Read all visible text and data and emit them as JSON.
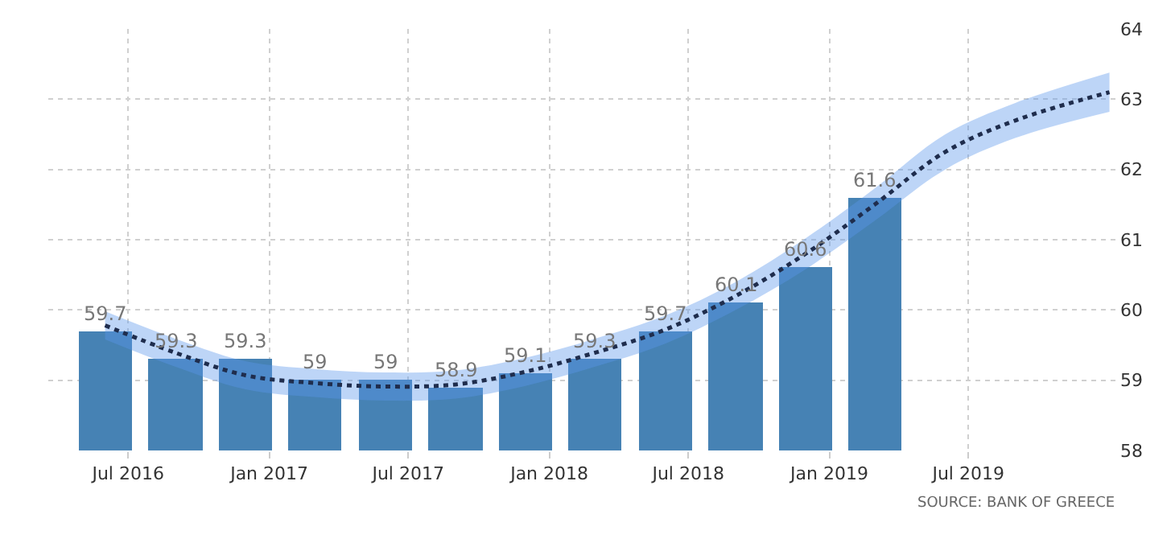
{
  "chart_data": {
    "type": "bar",
    "x": [
      "2016-06",
      "2016-09",
      "2016-12",
      "2017-03",
      "2017-06",
      "2017-09",
      "2017-12",
      "2018-03",
      "2018-06",
      "2018-09",
      "2018-12",
      "2019-03"
    ],
    "series": [
      {
        "color": "#4682b4",
        "values": [
          59.7,
          59.3,
          59.3,
          59,
          59,
          58.9,
          59.1,
          59.3,
          59.7,
          60.1,
          60.6,
          61.6
        ],
        "value_labels": [
          "59.7",
          "59.3",
          "59.3",
          "59",
          "59",
          "58.9",
          "59.1",
          "59.3",
          "59.7",
          "60.1",
          "60.6",
          "61.6"
        ]
      },
      {
        "type": "line",
        "color": "#1f2d4d",
        "line_style": "dotted",
        "x": [
          "2016-06",
          "2016-09",
          "2016-12",
          "2017-03",
          "2017-06",
          "2017-09",
          "2017-12",
          "2018-03",
          "2018-06",
          "2018-09",
          "2018-12",
          "2019-03",
          "2019-06",
          "2019-09",
          "2020-01"
        ],
        "values": [
          59.78,
          59.39,
          59.07,
          58.96,
          58.91,
          58.94,
          59.12,
          59.39,
          59.72,
          60.2,
          60.8,
          61.5,
          62.25,
          62.7,
          63.1
        ],
        "lower": [
          59.58,
          59.19,
          58.87,
          58.76,
          58.71,
          58.74,
          58.92,
          59.19,
          59.52,
          60.0,
          60.58,
          61.27,
          62.0,
          62.45,
          62.82
        ],
        "upper": [
          59.98,
          59.59,
          59.27,
          59.16,
          59.11,
          59.14,
          59.32,
          59.59,
          59.92,
          60.4,
          61.02,
          61.73,
          62.5,
          62.95,
          63.38
        ]
      }
    ],
    "xlim": [
      "2016-03-19",
      "2020-01-13"
    ],
    "xticks": [
      {
        "value": "2016-07",
        "label": "Jul 2016"
      },
      {
        "value": "2017-01",
        "label": "Jan 2017"
      },
      {
        "value": "2017-07",
        "label": "Jul 2017"
      },
      {
        "value": "2018-01",
        "label": "Jan 2018"
      },
      {
        "value": "2018-07",
        "label": "Jul 2018"
      },
      {
        "value": "2019-01",
        "label": "Jan 2019"
      },
      {
        "value": "2019-07",
        "label": "Jul 2019"
      }
    ],
    "ylim": [
      58,
      64
    ],
    "yticks": [
      58,
      59,
      60,
      61,
      62,
      63,
      64
    ],
    "grid": true,
    "legend": false,
    "annotations": [
      "SOURCE: BANK OF GREECE"
    ]
  }
}
